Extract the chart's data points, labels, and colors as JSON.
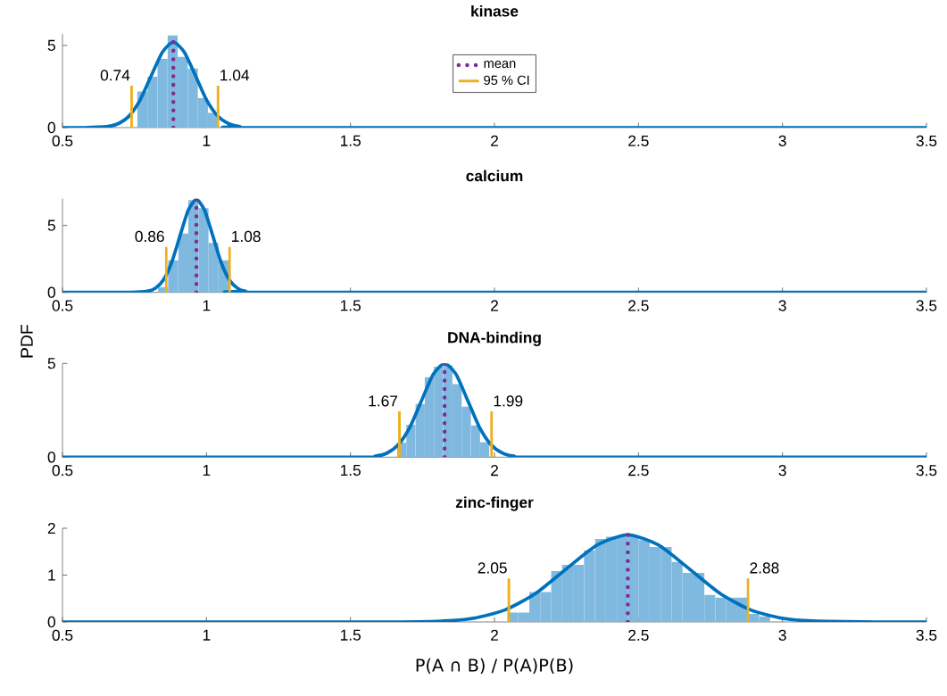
{
  "chart_data": [
    {
      "type": "histogram",
      "title": "kinase",
      "xlim": [
        0.5,
        3.5
      ],
      "ylim": [
        0,
        5.7
      ],
      "xticks": [
        0.5,
        1,
        1.5,
        2,
        2.5,
        3,
        3.5
      ],
      "yticks": [
        0,
        5
      ],
      "legend": "top",
      "series": [
        {
          "type": "histogram",
          "color": "#80b9df",
          "bins": [
            0.76,
            0.795,
            0.83,
            0.865,
            0.9,
            0.935,
            0.97,
            1.005,
            1.04,
            1.075
          ],
          "values": [
            2.2,
            3.1,
            4.2,
            5.6,
            4.3,
            3.6,
            1.8,
            0.9,
            null
          ]
        },
        {
          "type": "line",
          "color": "#0072bd",
          "x": [
            0.5,
            0.577,
            0.654,
            0.692,
            0.731,
            0.77,
            0.808,
            0.847,
            0.885,
            0.923,
            0.962,
            1.0,
            1.039,
            1.078,
            1.116,
            1.193,
            3.5
          ],
          "values": [
            0,
            0,
            0.06,
            0.23,
            0.7,
            1.69,
            3.15,
            4.59,
            5.2,
            4.59,
            3.15,
            1.69,
            0.7,
            0.23,
            0.06,
            0,
            0
          ]
        },
        {
          "type": "line",
          "name": "mean",
          "color": "#7e2f8e",
          "line_style": "dotted",
          "x": [
            0.885,
            0.885
          ],
          "values": [
            0,
            5.2
          ]
        },
        {
          "type": "line",
          "name": "95 % CI",
          "color": "#edb120",
          "x": [
            0.74,
            0.74
          ],
          "values": [
            0,
            2.55
          ]
        },
        {
          "type": "line",
          "color": "#edb120",
          "x": [
            1.04,
            1.04
          ],
          "values": [
            0,
            2.55
          ]
        }
      ],
      "annotations": [
        {
          "text": "0.74",
          "x": 0.74,
          "y": 2.55
        },
        {
          "text": "1.04",
          "x": 1.04,
          "y": 2.55
        }
      ]
    },
    {
      "type": "histogram",
      "title": "calcium",
      "ylabel": "PDF",
      "xlim": [
        0.5,
        3.5
      ],
      "ylim": [
        0,
        7
      ],
      "xticks": [
        0.5,
        1,
        1.5,
        2,
        2.5,
        3,
        3.5
      ],
      "yticks": [
        0,
        5
      ],
      "series": [
        {
          "type": "histogram",
          "color": "#80b9df",
          "bins": [
            0.832,
            0.867,
            0.902,
            0.937,
            0.972,
            1.007,
            1.042,
            1.077,
            1.112
          ],
          "values": [
            0.4,
            2.4,
            4.4,
            6.9,
            6.3,
            3.7,
            2.4,
            null
          ]
        },
        {
          "type": "line",
          "color": "#0072bd",
          "x": [
            0.5,
            0.737,
            0.794,
            0.8225,
            0.851,
            0.8795,
            0.908,
            0.9365,
            0.965,
            0.9935,
            1.022,
            1.0505,
            1.079,
            1.1075,
            1.136,
            1.193,
            3.5
          ],
          "values": [
            0,
            0,
            0.08,
            0.31,
            0.94,
            2.26,
            4.22,
            6.13,
            6.95,
            6.13,
            4.22,
            2.26,
            0.94,
            0.31,
            0.08,
            0,
            0
          ]
        },
        {
          "type": "line",
          "color": "#7e2f8e",
          "line_style": "dotted",
          "x": [
            0.965,
            0.965
          ],
          "values": [
            0,
            6.95
          ]
        },
        {
          "type": "line",
          "color": "#edb120",
          "x": [
            0.86,
            0.86
          ],
          "values": [
            0,
            3.4
          ]
        },
        {
          "type": "line",
          "color": "#edb120",
          "x": [
            1.08,
            1.08
          ],
          "values": [
            0,
            3.4
          ]
        }
      ],
      "annotations": [
        {
          "text": "0.86",
          "x": 0.86,
          "y": 3.4
        },
        {
          "text": "1.08",
          "x": 1.08,
          "y": 3.4
        }
      ]
    },
    {
      "type": "histogram",
      "title": "DNA-binding",
      "xlim": [
        0.5,
        3.5
      ],
      "ylim": [
        0,
        5
      ],
      "xticks": [
        0.5,
        1,
        1.5,
        2,
        2.5,
        3,
        3.5
      ],
      "yticks": [
        0,
        5
      ],
      "series": [
        {
          "type": "histogram",
          "color": "#80b9df",
          "bins": [
            1.662,
            1.694,
            1.726,
            1.758,
            1.79,
            1.822,
            1.854,
            1.886,
            1.918,
            1.95,
            1.982
          ],
          "values": [
            0.78,
            1.73,
            2.84,
            4.27,
            4.82,
            4.9,
            3.9,
            2.7,
            1.7,
            0.8
          ]
        },
        {
          "type": "line",
          "color": "#0072bd",
          "x": [
            0.5,
            1.508,
            1.587,
            1.627,
            1.667,
            1.707,
            1.747,
            1.787,
            1.827,
            1.867,
            1.907,
            1.947,
            1.987,
            2.027,
            2.067,
            2.147,
            3.5
          ],
          "values": [
            0,
            0,
            0.06,
            0.22,
            0.68,
            1.62,
            3.03,
            4.41,
            5,
            4.41,
            3.03,
            1.62,
            0.68,
            0.22,
            0.06,
            0,
            0
          ]
        },
        {
          "type": "line",
          "color": "#7e2f8e",
          "line_style": "dotted",
          "x": [
            1.827,
            1.827
          ],
          "values": [
            0,
            5
          ]
        },
        {
          "type": "line",
          "color": "#edb120",
          "x": [
            1.67,
            1.67
          ],
          "values": [
            0,
            2.44
          ]
        },
        {
          "type": "line",
          "color": "#edb120",
          "x": [
            1.99,
            1.99
          ],
          "values": [
            0,
            2.44
          ]
        }
      ],
      "annotations": [
        {
          "text": "1.67",
          "x": 1.67,
          "y": 2.44
        },
        {
          "text": "1.99",
          "x": 1.99,
          "y": 2.44
        }
      ]
    },
    {
      "type": "histogram",
      "title": "zinc-finger",
      "xlabel": "P(A ∩ B) / P(A)P(B)",
      "xlim": [
        0.5,
        3.5
      ],
      "ylim": [
        0,
        2
      ],
      "xticks": [
        0.5,
        1,
        1.5,
        2,
        2.5,
        3,
        3.5
      ],
      "yticks": [
        0,
        1,
        2
      ],
      "series": [
        {
          "type": "histogram",
          "color": "#80b9df",
          "bins": [
            2.045,
            2.083,
            2.121,
            2.159,
            2.197,
            2.235,
            2.273,
            2.311,
            2.349,
            2.387,
            2.425,
            2.463,
            2.501,
            2.539,
            2.577,
            2.615,
            2.653,
            2.691,
            2.729,
            2.767,
            2.805,
            2.843,
            2.881,
            2.919,
            2.957
          ],
          "values": [
            0.2,
            0.2,
            0.64,
            0.64,
            1.09,
            1.22,
            1.22,
            1.53,
            1.77,
            1.82,
            1.82,
            1.84,
            1.75,
            1.6,
            1.6,
            1.28,
            1.05,
            1.05,
            0.58,
            0.52,
            0.52,
            0.52,
            0.17,
            0.12
          ]
        },
        {
          "type": "line",
          "color": "#0072bd",
          "x": [
            0.5,
            1.605,
            1.82,
            1.927,
            2.034,
            2.141,
            2.249,
            2.356,
            2.463,
            2.57,
            2.677,
            2.785,
            2.892,
            2.999,
            3.106,
            3.321,
            3.5
          ],
          "values": [
            0,
            0,
            0.02,
            0.08,
            0.25,
            0.6,
            1.13,
            1.64,
            1.86,
            1.64,
            1.13,
            0.6,
            0.25,
            0.08,
            0.02,
            0,
            0
          ]
        },
        {
          "type": "line",
          "color": "#7e2f8e",
          "line_style": "dotted",
          "x": [
            2.463,
            2.463
          ],
          "values": [
            0,
            1.86
          ]
        },
        {
          "type": "line",
          "color": "#edb120",
          "x": [
            2.05,
            2.05
          ],
          "values": [
            0,
            0.93
          ]
        },
        {
          "type": "line",
          "color": "#edb120",
          "x": [
            2.88,
            2.88
          ],
          "values": [
            0,
            0.93
          ]
        }
      ],
      "annotations": [
        {
          "text": "2.05",
          "x": 2.05,
          "y": 0.93
        },
        {
          "text": "2.88",
          "x": 2.88,
          "y": 0.93
        }
      ]
    }
  ]
}
